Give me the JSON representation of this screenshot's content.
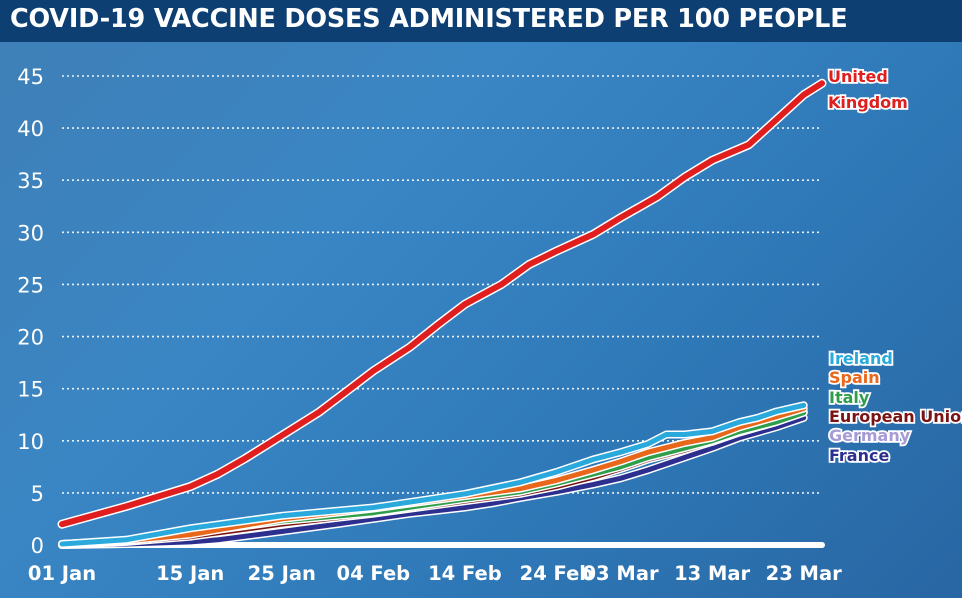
{
  "chart_data": {
    "type": "line",
    "title": "COVID-19 VACCINE DOSES ADMINISTERED PER 100 PEOPLE",
    "xlabel": "",
    "ylabel": "",
    "x_ticks": [
      "01 Jan",
      "15 Jan",
      "25 Jan",
      "04 Feb",
      "14 Feb",
      "24 Feb",
      "03 Mar",
      "13 Mar",
      "23 Mar"
    ],
    "x_tick_days": [
      0,
      14,
      24,
      34,
      44,
      54,
      61,
      71,
      81
    ],
    "y_ticks": [
      0,
      5,
      10,
      15,
      20,
      25,
      30,
      35,
      40,
      45
    ],
    "ylim": [
      0,
      45
    ],
    "xlim_days": [
      0,
      83
    ],
    "grid": "horizontal dotted",
    "legend": "direct labels at right end of lines",
    "series": [
      {
        "name": "United Kingdom",
        "label_lines": [
          "United",
          "Kingdom"
        ],
        "color": "#e01e1e",
        "x_days": [
          0,
          7,
          14,
          17,
          20,
          24,
          28,
          31,
          34,
          38,
          41,
          44,
          48,
          51,
          54,
          58,
          61,
          65,
          68,
          71,
          75,
          78,
          81,
          83
        ],
        "values": [
          2.0,
          3.7,
          5.6,
          6.8,
          8.3,
          10.5,
          12.7,
          14.7,
          16.7,
          19.0,
          21.1,
          23.1,
          25.0,
          26.9,
          28.2,
          29.8,
          31.4,
          33.4,
          35.3,
          36.9,
          38.4,
          40.8,
          43.2,
          44.3
        ]
      },
      {
        "name": "Ireland",
        "color": "#2aa9dd",
        "x_days": [
          0,
          7,
          14,
          24,
          34,
          44,
          50,
          54,
          58,
          61,
          64,
          66,
          68,
          71,
          74,
          76,
          78,
          81
        ],
        "values": [
          0.1,
          0.5,
          1.6,
          2.8,
          3.6,
          4.9,
          6.0,
          7.0,
          8.2,
          8.9,
          9.7,
          10.6,
          10.6,
          10.9,
          11.8,
          12.2,
          12.8,
          13.4
        ]
      },
      {
        "name": "Spain",
        "label_lines": [
          "Spain"
        ],
        "color": "#e8671a",
        "x_days": [
          0,
          7,
          14,
          24,
          34,
          44,
          50,
          54,
          58,
          61,
          64,
          68,
          71,
          74,
          78,
          81
        ],
        "values": [
          0.1,
          0.4,
          1.0,
          2.5,
          3.5,
          4.7,
          5.4,
          6.2,
          7.2,
          8.0,
          8.9,
          9.8,
          10.3,
          11.3,
          12.3,
          13.1
        ]
      },
      {
        "name": "Italy",
        "label_lines": [
          "Italy"
        ],
        "color": "#2f9e4a",
        "x_days": [
          0,
          7,
          14,
          24,
          34,
          44,
          50,
          54,
          58,
          61,
          64,
          68,
          71,
          74,
          78,
          81
        ],
        "values": [
          0.1,
          0.4,
          1.1,
          2.3,
          3.1,
          4.4,
          5.1,
          5.9,
          6.8,
          7.5,
          8.4,
          9.3,
          10.0,
          10.9,
          11.8,
          12.7
        ]
      },
      {
        "name": "European Union",
        "label_lines": [
          "European Union"
        ],
        "color": "#7a1414",
        "x_days": [
          0,
          7,
          14,
          24,
          34,
          44,
          50,
          54,
          58,
          61,
          64,
          68,
          71,
          74,
          78,
          81
        ],
        "values": [
          0.0,
          0.3,
          0.8,
          2.0,
          3.0,
          4.2,
          4.9,
          5.6,
          6.5,
          7.3,
          8.2,
          9.1,
          9.9,
          10.8,
          11.8,
          12.7
        ]
      },
      {
        "name": "Germany",
        "label_lines": [
          "Germany"
        ],
        "color": "#a79bd6",
        "x_days": [
          0,
          7,
          14,
          24,
          34,
          44,
          50,
          54,
          58,
          61,
          64,
          68,
          71,
          74,
          78,
          81
        ],
        "values": [
          0.1,
          0.4,
          1.0,
          2.2,
          3.2,
          4.3,
          5.0,
          5.7,
          6.6,
          7.3,
          8.2,
          9.2,
          9.9,
          10.8,
          11.8,
          12.8
        ]
      },
      {
        "name": "France",
        "label_lines": [
          "France"
        ],
        "color": "#2d2f8f",
        "x_days": [
          0,
          7,
          14,
          17,
          24,
          30,
          34,
          38,
          41,
          44,
          47,
          50,
          54,
          58,
          61,
          64,
          68,
          71,
          74,
          78,
          81
        ],
        "values": [
          0.0,
          0.1,
          0.3,
          0.5,
          1.3,
          2.0,
          2.5,
          3.0,
          3.3,
          3.6,
          4.0,
          4.5,
          5.1,
          5.8,
          6.4,
          7.2,
          8.4,
          9.3,
          10.3,
          11.3,
          12.2
        ]
      }
    ]
  }
}
